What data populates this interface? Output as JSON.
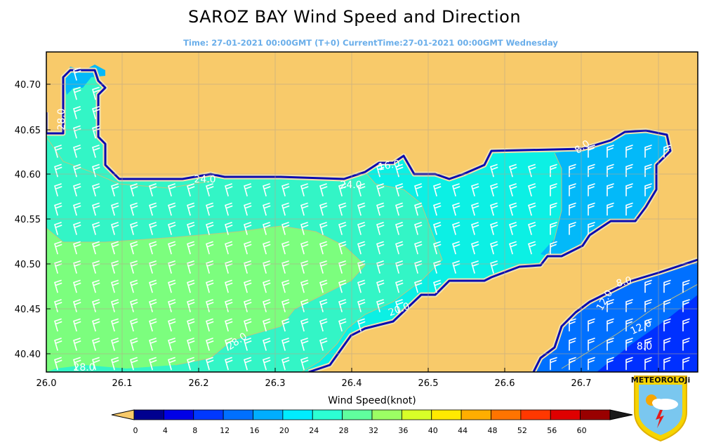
{
  "title": "SAROZ BAY  Wind Speed and Direction",
  "subtitle": "Time: 27-01-2021 00:00GMT (T+0)  CurrentTime:27-01-2021 00:00GMT Wednesday",
  "map": {
    "x_ticks": [
      "26.0",
      "26.1",
      "26.2",
      "26.3",
      "26.4",
      "26.5",
      "26.6",
      "26.7",
      "26.8"
    ],
    "y_ticks": [
      "40.70",
      "40.65",
      "40.60",
      "40.55",
      "40.50",
      "40.45",
      "40.40"
    ],
    "contour_labels": [
      "28.0",
      "28.0",
      "24.0",
      "24.0",
      "20.0",
      "16.0",
      "12.0",
      "12.0",
      "8.0",
      "8.0",
      "8.0",
      "28.0",
      "28.0"
    ],
    "land_color": "#f8ca6a",
    "coast_color": "#0a0ab0",
    "barb_color": "#ffffff"
  },
  "colorbar": {
    "title": "Wind Speed(knot)",
    "tick_labels": [
      "0",
      "4",
      "8",
      "12",
      "16",
      "20",
      "24",
      "28",
      "32",
      "36",
      "40",
      "44",
      "48",
      "52",
      "56",
      "60"
    ],
    "colors": [
      "#00008f",
      "#0000e6",
      "#0038ff",
      "#0070ff",
      "#00aeff",
      "#00ecff",
      "#2cffd4",
      "#60ff9e",
      "#9cff64",
      "#d8ff28",
      "#ffea00",
      "#ffae00",
      "#ff7400",
      "#ff3800",
      "#df0000",
      "#990000"
    ],
    "under_color": "#f8ca6a",
    "over_color": "#1a1a1a"
  },
  "logo": {
    "text": "METEOROLOJi"
  }
}
